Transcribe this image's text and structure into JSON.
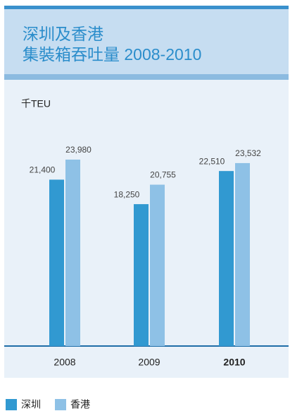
{
  "chart_data": {
    "type": "bar",
    "title": "深圳及香港",
    "subtitle": "集裝箱吞吐量 2008-2010",
    "unit_label": "千TEU",
    "categories": [
      "2008",
      "2009",
      "2010"
    ],
    "series": [
      {
        "name": "深圳",
        "color": "#3199d1",
        "values": [
          21400,
          18250,
          22510
        ],
        "value_labels": [
          "21,400",
          "18,250",
          "22,510"
        ]
      },
      {
        "name": "香港",
        "color": "#8ec1e6",
        "values": [
          23980,
          20755,
          23532
        ],
        "value_labels": [
          "23,980",
          "20,755",
          "23,532"
        ]
      }
    ]
  }
}
